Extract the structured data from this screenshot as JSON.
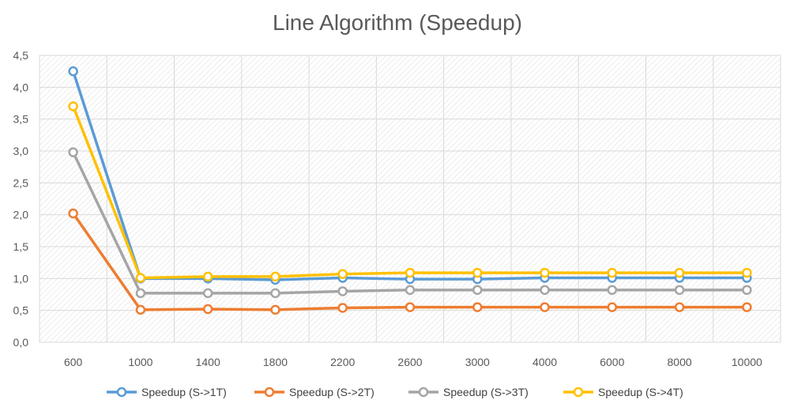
{
  "chart_data": {
    "type": "line",
    "title": "Line Algorithm (Speedup)",
    "xlabel": "",
    "ylabel": "",
    "categories": [
      "600",
      "1000",
      "1400",
      "1800",
      "2200",
      "2600",
      "3000",
      "4000",
      "6000",
      "8000",
      "10000"
    ],
    "y_ticks": [
      "0,0",
      "0,5",
      "1,0",
      "1,5",
      "2,0",
      "2,5",
      "3,0",
      "3,5",
      "4,0",
      "4,5"
    ],
    "ylim": [
      0,
      4.5
    ],
    "grid": true,
    "legend_position": "bottom",
    "series": [
      {
        "name": "Speedup (S->1T)",
        "color": "#5B9BD5",
        "values": [
          4.25,
          1.0,
          1.0,
          0.98,
          1.01,
          0.99,
          0.99,
          1.01,
          1.01,
          1.01,
          1.01
        ]
      },
      {
        "name": "Speedup (S->2T)",
        "color": "#ED7D31",
        "values": [
          2.02,
          0.51,
          0.52,
          0.51,
          0.54,
          0.55,
          0.55,
          0.55,
          0.55,
          0.55,
          0.55
        ]
      },
      {
        "name": "Speedup (S->3T)",
        "color": "#A5A5A5",
        "values": [
          2.98,
          0.77,
          0.77,
          0.77,
          0.8,
          0.82,
          0.82,
          0.82,
          0.82,
          0.82,
          0.82
        ]
      },
      {
        "name": "Speedup (S->4T)",
        "color": "#FFC000",
        "values": [
          3.7,
          1.01,
          1.03,
          1.03,
          1.07,
          1.09,
          1.09,
          1.09,
          1.09,
          1.09,
          1.09
        ]
      }
    ]
  }
}
